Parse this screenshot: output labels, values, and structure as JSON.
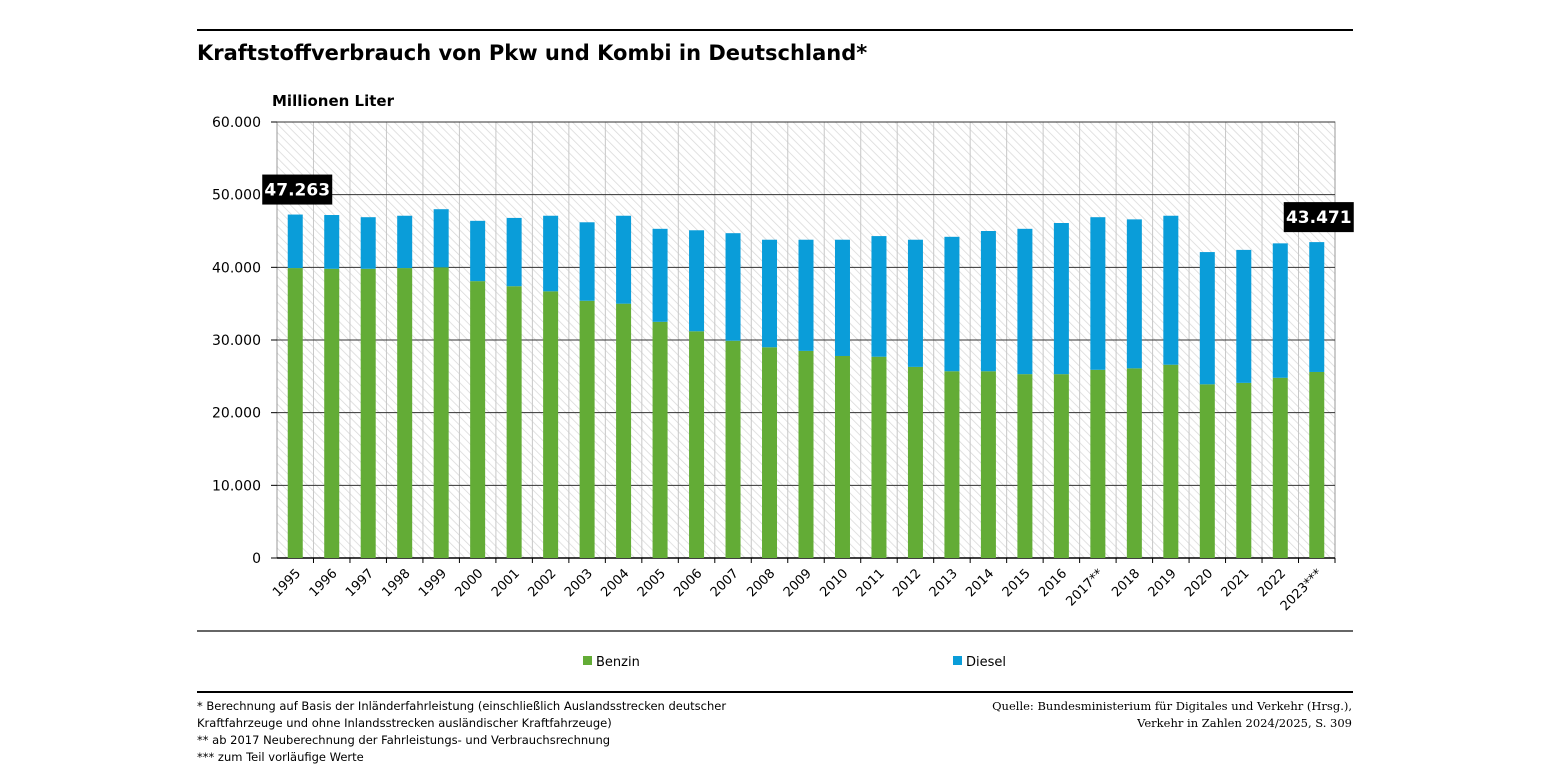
{
  "chart_data": {
    "type": "stacked-bar",
    "title": "Kraftstoffverbrauch von Pkw und Kombi in Deutschland*",
    "y_label": "Millionen Liter",
    "categories": [
      "1995",
      "1996",
      "1997",
      "1998",
      "1999",
      "2000",
      "2001",
      "2002",
      "2003",
      "2004",
      "2005",
      "2006",
      "2007",
      "2008",
      "2009",
      "2010",
      "2011",
      "2012",
      "2013",
      "2014",
      "2015",
      "2016",
      "2017**",
      "2018",
      "2019",
      "2020",
      "2021",
      "2022",
      "2023***"
    ],
    "series": [
      {
        "name": "Benzin",
        "color": "#63ac36",
        "values": [
          39900,
          39800,
          39800,
          39900,
          40000,
          38100,
          37400,
          36700,
          35400,
          35000,
          32500,
          31200,
          29900,
          29000,
          28500,
          27800,
          27700,
          26300,
          25700,
          25700,
          25300,
          25300,
          25900,
          26100,
          26600,
          23900,
          24100,
          24800,
          25600
        ]
      },
      {
        "name": "Diesel",
        "color": "#0a9dd9",
        "values": [
          7363,
          7400,
          7100,
          7200,
          8000,
          8300,
          9400,
          10400,
          10800,
          12100,
          12800,
          13900,
          14800,
          14800,
          15300,
          16000,
          16600,
          17500,
          18500,
          19300,
          20000,
          20800,
          21000,
          20500,
          20500,
          18200,
          18300,
          18500,
          17871
        ]
      }
    ],
    "annotations": [
      {
        "x": "1995",
        "value": 47263,
        "label": "47.263"
      },
      {
        "x": "2023***",
        "value": 43471,
        "label": "43.471"
      }
    ],
    "ylim": [
      0,
      60000
    ],
    "yticks": [
      0,
      {
        "value": 10000,
        "label": "10.000"
      },
      {
        "value": 20000,
        "label": "20.000"
      },
      {
        "value": 30000,
        "label": "30.000"
      },
      {
        "value": 40000,
        "label": "40.000"
      },
      {
        "value": 50000,
        "label": "50.000"
      },
      {
        "value": 60000,
        "label": "60.000"
      }
    ],
    "grid": true,
    "footnotes": [
      "* Berechnung auf Basis der Inländerfahrleistung (einschließlich Auslandsstrecken deutscher",
      "Kraftfahrzeuge und ohne Inlandsstrecken ausländischer Kraftfahrzeuge)",
      "** ab 2017 Neuberechnung der Fahrleistungs- und Verbrauchsrechnung",
      "*** zum Teil vorläufige Werte"
    ],
    "source": [
      "Quelle: Bundesministerium für Digitales und Verkehr (Hrsg.),",
      "Verkehr in Zahlen 2024/2025, S. 309"
    ]
  }
}
